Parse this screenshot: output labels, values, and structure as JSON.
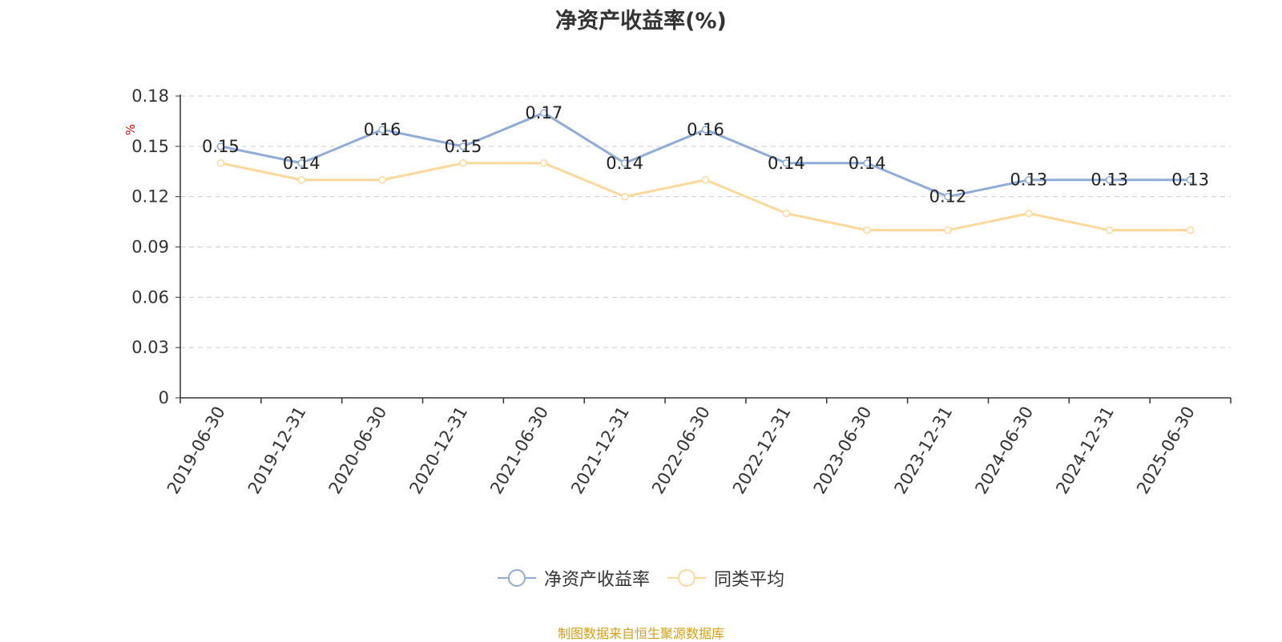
{
  "title": "净资产收益率(%)",
  "source": "制图数据来自恒生聚源数据库",
  "colors": {
    "series1": "#8eabd9",
    "series2": "#fcd99a",
    "axis": "#333333",
    "grid": "#cccccc",
    "unit": "#e60000",
    "source": "#d4a017"
  },
  "chart_data": {
    "type": "line",
    "title": "净资产收益率(%)",
    "ylabel": "%",
    "ylim": [
      0,
      0.18
    ],
    "yticks": [
      "0",
      "0.03",
      "0.06",
      "0.09",
      "0.12",
      "0.15",
      "0.18"
    ],
    "grid": true,
    "legend_position": "bottom",
    "categories": [
      "2019-06-30",
      "2019-12-31",
      "2020-06-30",
      "2020-12-31",
      "2021-06-30",
      "2021-12-31",
      "2022-06-30",
      "2022-12-31",
      "2023-06-30",
      "2023-12-31",
      "2024-06-30",
      "2024-12-31",
      "2025-06-30"
    ],
    "series": [
      {
        "name": "净资产收益率",
        "values": [
          0.15,
          0.14,
          0.16,
          0.15,
          0.17,
          0.14,
          0.16,
          0.14,
          0.14,
          0.12,
          0.13,
          0.13,
          0.13
        ],
        "data_labels": [
          "0.15",
          "0.14",
          "0.16",
          "0.15",
          "0.17",
          "0.14",
          "0.16",
          "0.14",
          "0.14",
          "0.12",
          "0.13",
          "0.13",
          "0.13"
        ]
      },
      {
        "name": "同类平均",
        "values": [
          0.14,
          0.13,
          0.13,
          0.14,
          0.14,
          0.12,
          0.13,
          0.11,
          0.1,
          0.1,
          0.11,
          0.1,
          0.1
        ]
      }
    ]
  }
}
